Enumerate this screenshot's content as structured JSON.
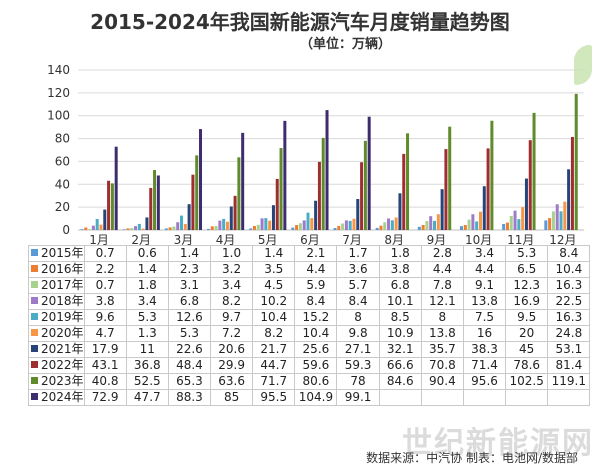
{
  "chart_data": {
    "type": "bar",
    "title": "2015-2024年我国新能源汽车月度销量趋势图",
    "subtitle": "（单位：万辆）",
    "categories": [
      "1月",
      "2月",
      "3月",
      "4月",
      "5月",
      "6月",
      "7月",
      "8月",
      "9月",
      "10月",
      "11月",
      "12月"
    ],
    "ylim": [
      0,
      140
    ],
    "yticks": [
      0,
      20,
      40,
      60,
      80,
      100,
      120,
      140
    ],
    "grid": true,
    "legend": "table-below",
    "series": [
      {
        "name": "2015年",
        "color": "#5b9bd5",
        "values": [
          0.7,
          0.6,
          1.4,
          1.0,
          1.4,
          2.1,
          1.7,
          1.8,
          2.8,
          3.4,
          5.3,
          8.4
        ]
      },
      {
        "name": "2016年",
        "color": "#ed7d31",
        "values": [
          2.2,
          1.4,
          2.3,
          3.2,
          3.5,
          4.4,
          3.6,
          3.8,
          4.4,
          4.4,
          6.5,
          10.4
        ]
      },
      {
        "name": "2017年",
        "color": "#a9d18e",
        "values": [
          0.7,
          1.8,
          3.1,
          3.4,
          4.5,
          5.9,
          5.7,
          6.8,
          7.8,
          9.1,
          12.3,
          16.3
        ]
      },
      {
        "name": "2018年",
        "color": "#9e7bc9",
        "values": [
          3.8,
          3.4,
          6.8,
          8.2,
          10.2,
          8.4,
          8.4,
          10.1,
          12.1,
          13.8,
          16.9,
          22.5
        ]
      },
      {
        "name": "2019年",
        "color": "#4bacc6",
        "values": [
          9.6,
          5.3,
          12.6,
          9.7,
          10.4,
          15.2,
          8,
          8.5,
          8,
          7.5,
          9.5,
          16.3
        ]
      },
      {
        "name": "2020年",
        "color": "#f79646",
        "values": [
          4.7,
          1.3,
          5.3,
          7.2,
          8.2,
          10.4,
          9.8,
          10.9,
          13.8,
          16,
          20,
          24.8
        ]
      },
      {
        "name": "2021年",
        "color": "#264478",
        "values": [
          17.9,
          11,
          22.6,
          20.6,
          21.7,
          25.6,
          27.1,
          32.1,
          35.7,
          38.3,
          45,
          53.1
        ]
      },
      {
        "name": "2022年",
        "color": "#9e2f2f",
        "values": [
          43.1,
          36.8,
          48.4,
          29.9,
          44.7,
          59.6,
          59.3,
          66.6,
          70.8,
          71.4,
          78.6,
          81.4
        ]
      },
      {
        "name": "2023年",
        "color": "#5f8b2c",
        "values": [
          40.8,
          52.5,
          65.3,
          63.6,
          71.7,
          80.6,
          78,
          84.6,
          90.4,
          95.6,
          102.5,
          119.1
        ]
      },
      {
        "name": "2024年",
        "color": "#3d2c6e",
        "values": [
          72.9,
          47.7,
          88.3,
          85,
          95.5,
          104.9,
          99.1,
          null,
          null,
          null,
          null,
          null
        ]
      }
    ],
    "table_values": [
      [
        "0.7",
        "0.6",
        "1.4",
        "1.0",
        "1.4",
        "2.1",
        "1.7",
        "1.8",
        "2.8",
        "3.4",
        "5.3",
        "8.4"
      ],
      [
        "2.2",
        "1.4",
        "2.3",
        "3.2",
        "3.5",
        "4.4",
        "3.6",
        "3.8",
        "4.4",
        "4.4",
        "6.5",
        "10.4"
      ],
      [
        "0.7",
        "1.8",
        "3.1",
        "3.4",
        "4.5",
        "5.9",
        "5.7",
        "6.8",
        "7.8",
        "9.1",
        "12.3",
        "16.3"
      ],
      [
        "3.8",
        "3.4",
        "6.8",
        "8.2",
        "10.2",
        "8.4",
        "8.4",
        "10.1",
        "12.1",
        "13.8",
        "16.9",
        "22.5"
      ],
      [
        "9.6",
        "5.3",
        "12.6",
        "9.7",
        "10.4",
        "15.2",
        "8",
        "8.5",
        "8",
        "7.5",
        "9.5",
        "16.3"
      ],
      [
        "4.7",
        "1.3",
        "5.3",
        "7.2",
        "8.2",
        "10.4",
        "9.8",
        "10.9",
        "13.8",
        "16",
        "20",
        "24.8"
      ],
      [
        "17.9",
        "11",
        "22.6",
        "20.6",
        "21.7",
        "25.6",
        "27.1",
        "32.1",
        "35.7",
        "38.3",
        "45",
        "53.1"
      ],
      [
        "43.1",
        "36.8",
        "48.4",
        "29.9",
        "44.7",
        "59.6",
        "59.3",
        "66.6",
        "70.8",
        "71.4",
        "78.6",
        "81.4"
      ],
      [
        "40.8",
        "52.5",
        "65.3",
        "63.6",
        "71.7",
        "80.6",
        "78",
        "84.6",
        "90.4",
        "95.6",
        "102.5",
        "119.1"
      ],
      [
        "72.9",
        "47.7",
        "88.3",
        "85",
        "95.5",
        "104.9",
        "99.1",
        "",
        "",
        "",
        "",
        ""
      ]
    ]
  },
  "source_note": "数据来源：中汽协   制表：电池网/数据部",
  "watermark_text": "世纪新能源网",
  "colors": {
    "grid": "#d9d9d9",
    "axis": "#bfbfbf",
    "text": "#333333"
  }
}
